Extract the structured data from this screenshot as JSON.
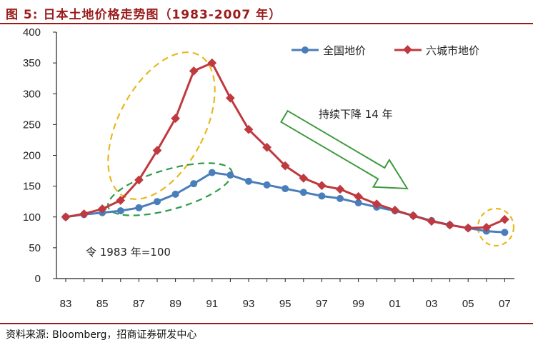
{
  "title": "图 5: 日本土地价格走势图（1983-2007 年）",
  "source": "资料来源: Bloomberg，招商证券研发中心",
  "colors": {
    "title": "#9b1b1b",
    "national_series": "#4a7ebb",
    "six_cities_series": "#c0393f",
    "highlight_ellipse_yellow": "#e8b820",
    "highlight_ellipse_green": "#2e9a4a",
    "arrow": "#3c9a3c"
  },
  "chart_data": {
    "type": "line",
    "x": [
      1983,
      1984,
      1985,
      1986,
      1987,
      1988,
      1989,
      1990,
      1991,
      1992,
      1993,
      1994,
      1995,
      1996,
      1997,
      1998,
      1999,
      2000,
      2001,
      2002,
      2003,
      2004,
      2005,
      2006,
      2007
    ],
    "xtick_labels": [
      "83",
      "85",
      "87",
      "89",
      "91",
      "93",
      "95",
      "97",
      "99",
      "01",
      "03",
      "05",
      "07"
    ],
    "xtick_years": [
      1983,
      1985,
      1987,
      1989,
      1991,
      1993,
      1995,
      1997,
      1999,
      2001,
      2003,
      2005,
      2007
    ],
    "ylim": [
      0,
      400
    ],
    "yticks": [
      0,
      50,
      100,
      150,
      200,
      250,
      300,
      350,
      400
    ],
    "grid": false,
    "legend_position": "top-right",
    "series": [
      {
        "name": "全国地价",
        "marker": "circle",
        "values": [
          100,
          104,
          107,
          110,
          115,
          125,
          137,
          154,
          172,
          168,
          158,
          152,
          146,
          140,
          134,
          130,
          123,
          116,
          110,
          102,
          94,
          87,
          82,
          77,
          75
        ]
      },
      {
        "name": "六城市地价",
        "marker": "diamond",
        "values": [
          100,
          105,
          113,
          127,
          160,
          208,
          260,
          337,
          350,
          293,
          242,
          213,
          183,
          163,
          151,
          145,
          133,
          121,
          111,
          102,
          93,
          87,
          82,
          83,
          96
        ]
      }
    ],
    "annotations": {
      "arrow_text": "持续下降 14 年",
      "base_note": "令 1983 年=100"
    }
  }
}
